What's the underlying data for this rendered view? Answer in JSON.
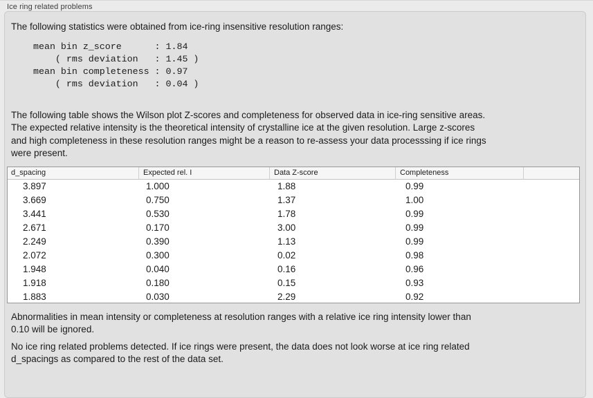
{
  "window": {
    "title": "Ice ring related problems"
  },
  "intro": "The following statistics were obtained from ice-ring insensitive resolution ranges:",
  "stats": {
    "mean_bin_z_score": "1.84",
    "z_score_rms_deviation": "1.45",
    "mean_bin_completeness": "0.97",
    "completeness_rms_deviation": "0.04",
    "lines": [
      "mean bin z_score      : 1.84",
      "    ( rms deviation   : 1.45 )",
      "mean bin completeness : 0.97",
      "    ( rms deviation   : 0.04 )"
    ]
  },
  "description": {
    "lines": [
      "The following table shows the Wilson plot Z-scores and completeness for observed data in ice-ring sensitive areas.",
      "The expected relative intensity is the theoretical intensity of crystalline ice at the given resolution. Large z-scores",
      "and high completeness in these resolution ranges might be a reason to re-assess your data processsing if ice rings",
      "were present."
    ]
  },
  "table": {
    "columns": [
      "d_spacing",
      "Expected rel. I",
      "Data Z-score",
      "Completeness"
    ],
    "rows": [
      [
        "3.897",
        "1.000",
        "1.88",
        "0.99"
      ],
      [
        "3.669",
        "0.750",
        "1.37",
        "1.00"
      ],
      [
        "3.441",
        "0.530",
        "1.78",
        "0.99"
      ],
      [
        "2.671",
        "0.170",
        "3.00",
        "0.99"
      ],
      [
        "2.249",
        "0.390",
        "1.13",
        "0.99"
      ],
      [
        "2.072",
        "0.300",
        "0.02",
        "0.98"
      ],
      [
        "1.948",
        "0.040",
        "0.16",
        "0.96"
      ],
      [
        "1.918",
        "0.180",
        "0.15",
        "0.93"
      ],
      [
        "1.883",
        "0.030",
        "2.29",
        "0.92"
      ]
    ]
  },
  "note": {
    "lines": [
      "Abnormalities in mean intensity or completeness at resolution ranges with a relative ice ring intensity lower than",
      "0.10 will be ignored."
    ]
  },
  "conclusion": {
    "lines": [
      "No ice ring related problems detected. If ice rings were present, the data does not look worse at ice ring related",
      "d_spacings as compared to the rest of the data set."
    ]
  },
  "colors": {
    "outer_bg": "#ebebeb",
    "panel_bg": "#e1e1e1",
    "panel_border": "#cbcbcb",
    "text": "#1b1b1b",
    "table_bg": "#ffffff",
    "table_border": "#979797",
    "header_bg": "#f6f6f6",
    "header_sep": "#cfcfcf"
  }
}
